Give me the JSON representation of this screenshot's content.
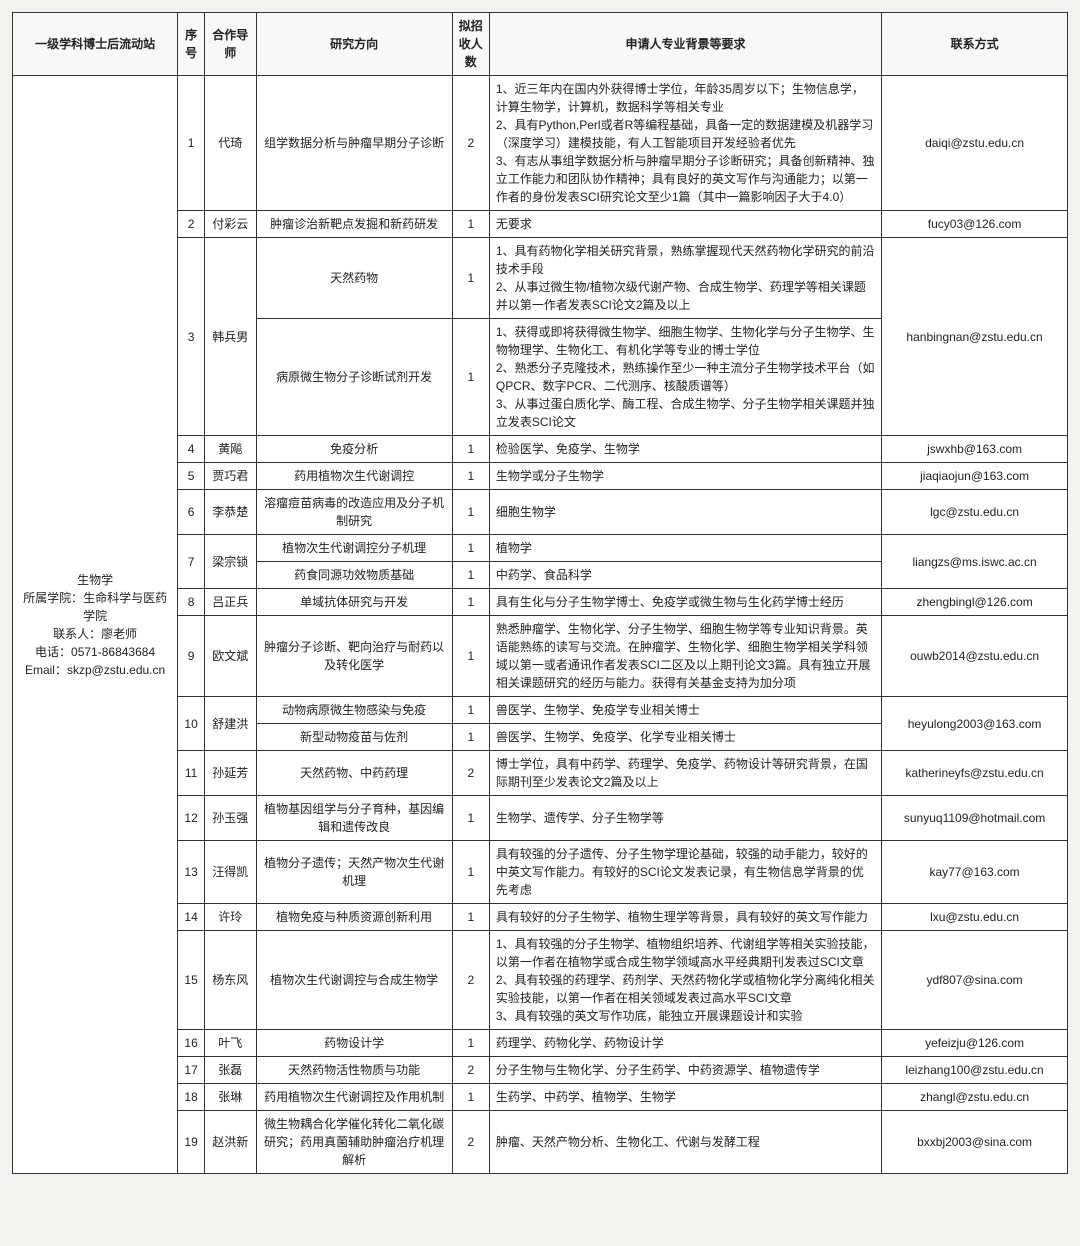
{
  "headers": {
    "station": "一级学科博士后流动站",
    "seq": "序号",
    "advisor": "合作导师",
    "direction": "研究方向",
    "count": "拟招收人数",
    "req": "申请人专业背景等要求",
    "contact": "联系方式"
  },
  "station": "生物学\n所属学院：生命科学与医药学院\n联系人：廖老师\n电话：0571-86843684\nEmail：skzp@zstu.edu.cn",
  "rows": {
    "r1": {
      "seq": "1",
      "advisor": "代琦",
      "direction": "组学数据分析与肿瘤早期分子诊断",
      "count": "2",
      "req": "1、近三年内在国内外获得博士学位，年龄35周岁以下；生物信息学，计算生物学，计算机，数据科学等相关专业\n2、具有Python,Perl或者R等编程基础，具备一定的数据建模及机器学习（深度学习）建模技能，有人工智能项目开发经验者优先\n3、有志从事组学数据分析与肿瘤早期分子诊断研究；具备创新精神、独立工作能力和团队协作精神；具有良好的英文写作与沟通能力；以第一作者的身份发表SCI研究论文至少1篇（其中一篇影响因子大于4.0）",
      "contact": "daiqi@zstu.edu.cn"
    },
    "r2": {
      "seq": "2",
      "advisor": "付彩云",
      "direction": "肿瘤诊治新靶点发掘和新药研发",
      "count": "1",
      "req": "无要求",
      "contact": "fucy03@126.com"
    },
    "r3a": {
      "direction": "天然药物",
      "count": "1",
      "req": "1、具有药物化学相关研究背景，熟练掌握现代天然药物化学研究的前沿技术手段\n2、从事过微生物/植物次级代谢产物、合成生物学、药理学等相关课题并以第一作者发表SCI论文2篇及以上"
    },
    "r3": {
      "seq": "3",
      "advisor": "韩兵男",
      "contact": "hanbingnan@zstu.edu.cn"
    },
    "r3b": {
      "direction": "病原微生物分子诊断试剂开发",
      "count": "1",
      "req": "1、获得或即将获得微生物学、细胞生物学、生物化学与分子生物学、生物物理学、生物化工、有机化学等专业的博士学位\n2、熟悉分子克隆技术，熟练操作至少一种主流分子生物学技术平台（如QPCR、数字PCR、二代测序、核酸质谱等）\n3、从事过蛋白质化学、酶工程、合成生物学、分子生物学相关课题并独立发表SCI论文"
    },
    "r4": {
      "seq": "4",
      "advisor": "黄飚",
      "direction": "免疫分析",
      "count": "1",
      "req": "检验医学、免疫学、生物学",
      "contact": "jswxhb@163.com"
    },
    "r5": {
      "seq": "5",
      "advisor": "贾巧君",
      "direction": "药用植物次生代谢调控",
      "count": "1",
      "req": "生物学或分子生物学",
      "contact": "jiaqiaojun@163.com"
    },
    "r6": {
      "seq": "6",
      "advisor": "李恭楚",
      "direction": "溶瘤痘苗病毒的改造应用及分子机制研究",
      "count": "1",
      "req": "细胞生物学",
      "contact": "lgc@zstu.edu.cn"
    },
    "r7a": {
      "direction": "植物次生代谢调控分子机理",
      "count": "1",
      "req": "植物学"
    },
    "r7": {
      "seq": "7",
      "advisor": "梁宗锁",
      "contact": "liangzs@ms.iswc.ac.cn"
    },
    "r7b": {
      "direction": "药食同源功效物质基础",
      "count": "1",
      "req": "中药学、食品科学"
    },
    "r8": {
      "seq": "8",
      "advisor": "吕正兵",
      "direction": "单域抗体研究与开发",
      "count": "1",
      "req": "具有生化与分子生物学博士、免疫学或微生物与生化药学博士经历",
      "contact": "zhengbingl@126.com"
    },
    "r9": {
      "seq": "9",
      "advisor": "欧文斌",
      "direction": "肿瘤分子诊断、靶向治疗与耐药以及转化医学",
      "count": "1",
      "req": "熟悉肿瘤学、生物化学、分子生物学、细胞生物学等专业知识背景。英语能熟练的读写与交流。在肿瘤学、生物化学、细胞生物学相关学科领域以第一或者通讯作者发表SCI二区及以上期刊论文3篇。具有独立开展相关课题研究的经历与能力。获得有关基金支持为加分项",
      "contact": "ouwb2014@zstu.edu.cn"
    },
    "r10a": {
      "direction": "动物病原微生物感染与免疫",
      "count": "1",
      "req": "兽医学、生物学、免疫学专业相关博士"
    },
    "r10": {
      "seq": "10",
      "advisor": "舒建洪",
      "contact": "heyulong2003@163.com"
    },
    "r10b": {
      "direction": "新型动物疫苗与佐剂",
      "count": "1",
      "req": "兽医学、生物学、免疫学、化学专业相关博士"
    },
    "r11": {
      "seq": "11",
      "advisor": "孙延芳",
      "direction": "天然药物、中药药理",
      "count": "2",
      "req": "博士学位，具有中药学、药理学、免疫学、药物设计等研究背景，在国际期刊至少发表论文2篇及以上",
      "contact": "katherineyfs@zstu.edu.cn"
    },
    "r12": {
      "seq": "12",
      "advisor": "孙玉强",
      "direction": "植物基因组学与分子育种，基因编辑和遗传改良",
      "count": "1",
      "req": "生物学、遗传学、分子生物学等",
      "contact": "sunyuq1109@hotmail.com"
    },
    "r13": {
      "seq": "13",
      "advisor": "汪得凯",
      "direction": "植物分子遗传；天然产物次生代谢机理",
      "count": "1",
      "req": "具有较强的分子遗传、分子生物学理论基础，较强的动手能力，较好的中英文写作能力。有较好的SCI论文发表记录，有生物信息学背景的优先考虑",
      "contact": "kay77@163.com"
    },
    "r14": {
      "seq": "14",
      "advisor": "许玲",
      "direction": "植物免疫与种质资源创新利用",
      "count": "1",
      "req": "具有较好的分子生物学、植物生理学等背景，具有较好的英文写作能力",
      "contact": "lxu@zstu.edu.cn"
    },
    "r15": {
      "seq": "15",
      "advisor": "杨东风",
      "direction": "植物次生代谢调控与合成生物学",
      "count": "2",
      "req": "1、具有较强的分子生物学、植物组织培养、代谢组学等相关实验技能，以第一作者在植物学或合成生物学领域高水平经典期刊发表过SCI文章\n2、具有较强的药理学、药剂学、天然药物化学或植物化学分离纯化相关实验技能，以第一作者在相关领域发表过高水平SCI文章\n3、具有较强的英文写作功底，能独立开展课题设计和实验",
      "contact": "ydf807@sina.com"
    },
    "r16": {
      "seq": "16",
      "advisor": "叶飞",
      "direction": "药物设计学",
      "count": "1",
      "req": "药理学、药物化学、药物设计学",
      "contact": "yefeizju@126.com"
    },
    "r17": {
      "seq": "17",
      "advisor": "张磊",
      "direction": "天然药物活性物质与功能",
      "count": "2",
      "req": "分子生物与生物化学、分子生药学、中药资源学、植物遗传学",
      "contact": "leizhang100@zstu.edu.cn"
    },
    "r18": {
      "seq": "18",
      "advisor": "张琳",
      "direction": "药用植物次生代谢调控及作用机制",
      "count": "1",
      "req": "生药学、中药学、植物学、生物学",
      "contact": "zhangl@zstu.edu.cn"
    },
    "r19": {
      "seq": "19",
      "advisor": "赵洪新",
      "direction": "微生物耦合化学催化转化二氧化碳研究；药用真菌辅助肿瘤治疗机理解析",
      "count": "2",
      "req": "肿瘤、天然产物分析、生物化工、代谢与发酵工程",
      "contact": "bxxbj2003@sina.com"
    }
  }
}
